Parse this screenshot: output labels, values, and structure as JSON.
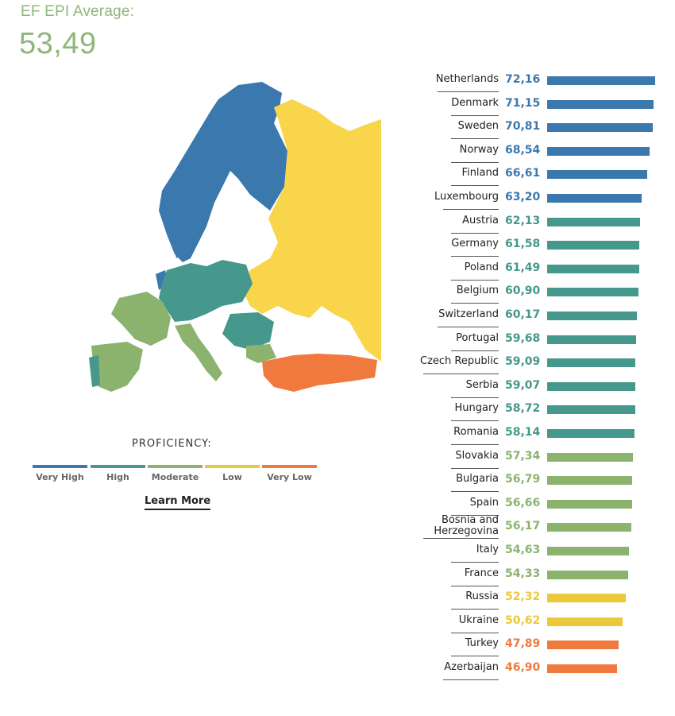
{
  "header": {
    "label": "EF EPI Average:",
    "value": "53,49"
  },
  "legend": {
    "title": "PROFICIENCY:",
    "items": [
      {
        "label": "Very High",
        "color": "#3a78ad"
      },
      {
        "label": "High",
        "color": "#45988b"
      },
      {
        "label": "Moderate",
        "color": "#8bb36e"
      },
      {
        "label": "Low",
        "color": "#ecc83c"
      },
      {
        "label": "Very Low",
        "color": "#f07a3e"
      }
    ]
  },
  "learn_more": "Learn More",
  "chart_data": {
    "type": "bar",
    "orientation": "horizontal",
    "title": "",
    "categories": [
      "Netherlands",
      "Denmark",
      "Sweden",
      "Norway",
      "Finland",
      "Luxembourg",
      "Austria",
      "Germany",
      "Poland",
      "Belgium",
      "Switzerland",
      "Portugal",
      "Czech Republic",
      "Serbia",
      "Hungary",
      "Romania",
      "Slovakia",
      "Bulgaria",
      "Spain",
      "Bosnia and Herzegovina",
      "Italy",
      "France",
      "Russia",
      "Ukraine",
      "Turkey",
      "Azerbaijan"
    ],
    "values": [
      72.16,
      71.15,
      70.81,
      68.54,
      66.61,
      63.2,
      62.13,
      61.58,
      61.49,
      60.9,
      60.17,
      59.68,
      59.09,
      59.07,
      58.72,
      58.14,
      57.34,
      56.79,
      56.66,
      56.17,
      54.63,
      54.33,
      52.32,
      50.62,
      47.89,
      46.9
    ],
    "labels": [
      "72,16",
      "71,15",
      "70,81",
      "68,54",
      "66,61",
      "63,20",
      "62,13",
      "61,58",
      "61,49",
      "60,90",
      "60,17",
      "59,68",
      "59,09",
      "59,07",
      "58,72",
      "58,14",
      "57,34",
      "56,79",
      "56,66",
      "56,17",
      "54,63",
      "54,33",
      "52,32",
      "50,62",
      "47,89",
      "46,90"
    ],
    "levels": [
      "Very High",
      "Very High",
      "Very High",
      "Very High",
      "Very High",
      "Very High",
      "High",
      "High",
      "High",
      "High",
      "High",
      "High",
      "High",
      "High",
      "High",
      "High",
      "Moderate",
      "Moderate",
      "Moderate",
      "Moderate",
      "Moderate",
      "Moderate",
      "Low",
      "Low",
      "Very Low",
      "Very Low"
    ],
    "xlim": [
      0,
      72.16
    ]
  }
}
